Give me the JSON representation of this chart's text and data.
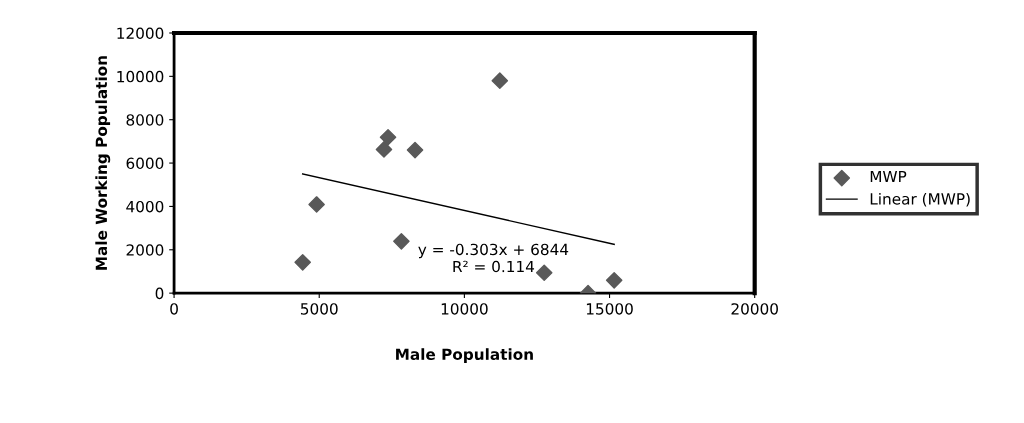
{
  "chart_data": {
    "type": "scatter",
    "xlabel": "Male Population",
    "ylabel": "Male Working Population",
    "xlim": [
      0,
      20000
    ],
    "xticks": [
      0,
      5000,
      10000,
      15000,
      20000
    ],
    "ylim": [
      0,
      12000
    ],
    "yticks": [
      0,
      2000,
      4000,
      6000,
      8000,
      10000,
      12000
    ],
    "grid": false,
    "legend": "right",
    "series": [
      {
        "name": "MWP",
        "marker": "diamond",
        "color": "#595959",
        "x": [
          4430,
          4910,
          7230,
          7370,
          8300,
          7830,
          11220,
          12750,
          14260,
          15160
        ],
        "values": [
          1420,
          4090,
          6630,
          7190,
          6600,
          2390,
          9800,
          940,
          0,
          590
        ]
      },
      {
        "name": "Linear (MWP)",
        "type": "line",
        "marker": "none",
        "color": "#000000",
        "x": [
          4430,
          15160
        ],
        "values": [
          5500,
          2250
        ]
      }
    ],
    "annotations": [
      "y = -0.303x + 6844\nR² = 0.114"
    ]
  }
}
